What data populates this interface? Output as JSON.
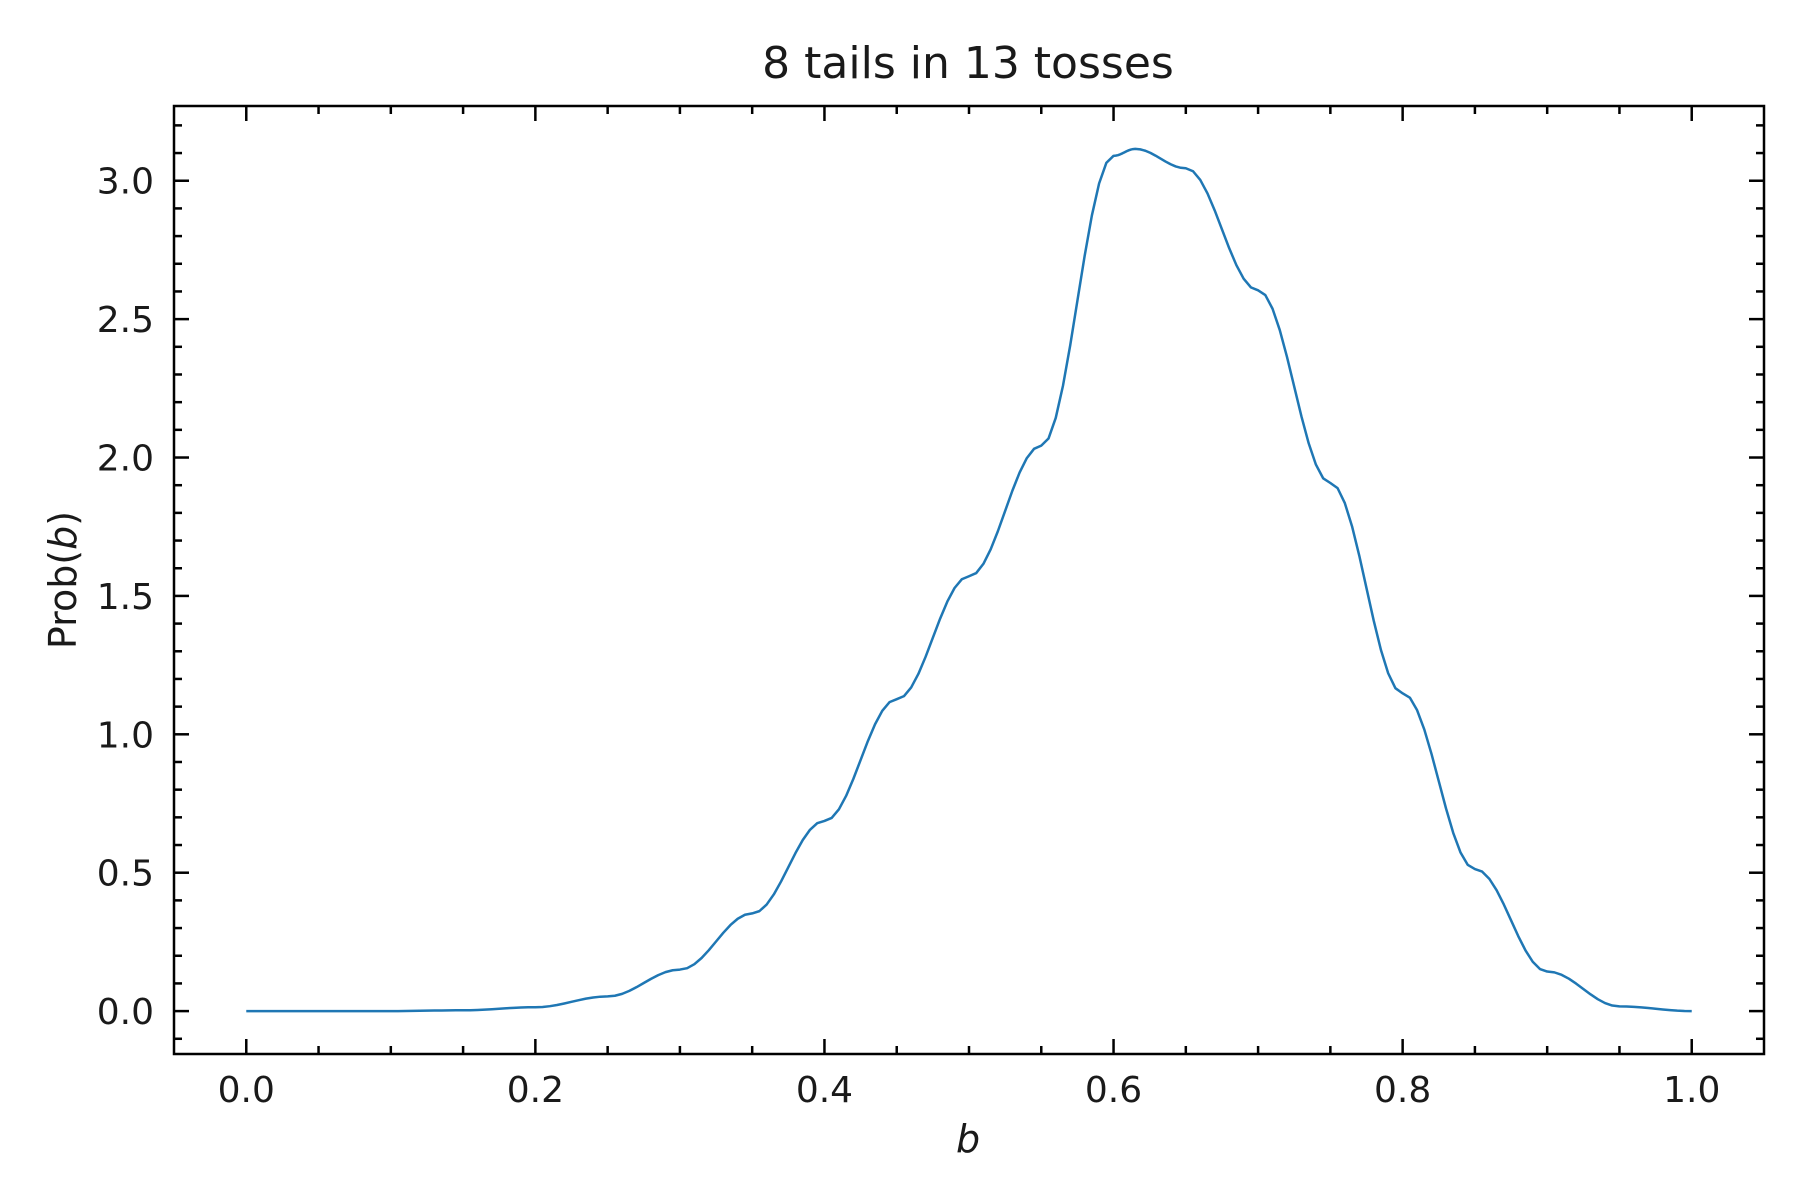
{
  "chart_data": {
    "type": "line",
    "title": "8 tails in 13 tosses",
    "xlabel": "b",
    "ylabel_prefix": "Prob(",
    "ylabel_var": "b",
    "ylabel_suffix": ")",
    "xlim": [
      -0.05,
      1.05
    ],
    "ylim": [
      -0.155,
      3.27
    ],
    "xticks": [
      0.0,
      0.2,
      0.4,
      0.6,
      0.8,
      1.0
    ],
    "xtick_labels": [
      "0.0",
      "0.2",
      "0.4",
      "0.6",
      "0.8",
      "1.0"
    ],
    "xminor_step": 0.05,
    "yticks": [
      0.0,
      0.5,
      1.0,
      1.5,
      2.0,
      2.5,
      3.0
    ],
    "ytick_labels": [
      "0.0",
      "0.5",
      "1.0",
      "1.5",
      "2.0",
      "2.5",
      "3.0"
    ],
    "yminor_step": 0.1,
    "grid": false,
    "series": [
      {
        "color": "#1f77b4",
        "x": [
          0.0,
          0.05,
          0.1,
          0.15,
          0.2,
          0.25,
          0.3,
          0.35,
          0.4,
          0.45,
          0.5,
          0.55,
          0.6,
          0.615,
          0.65,
          0.7,
          0.75,
          0.8,
          0.85,
          0.9,
          0.95,
          1.0
        ],
        "y": [
          0.0,
          0.0,
          0.0,
          0.003,
          0.014,
          0.053,
          0.15,
          0.353,
          0.687,
          1.127,
          1.571,
          2.043,
          3.09,
          3.115,
          3.045,
          2.604,
          1.908,
          1.148,
          0.513,
          0.143,
          0.017,
          0.0
        ]
      }
    ]
  }
}
